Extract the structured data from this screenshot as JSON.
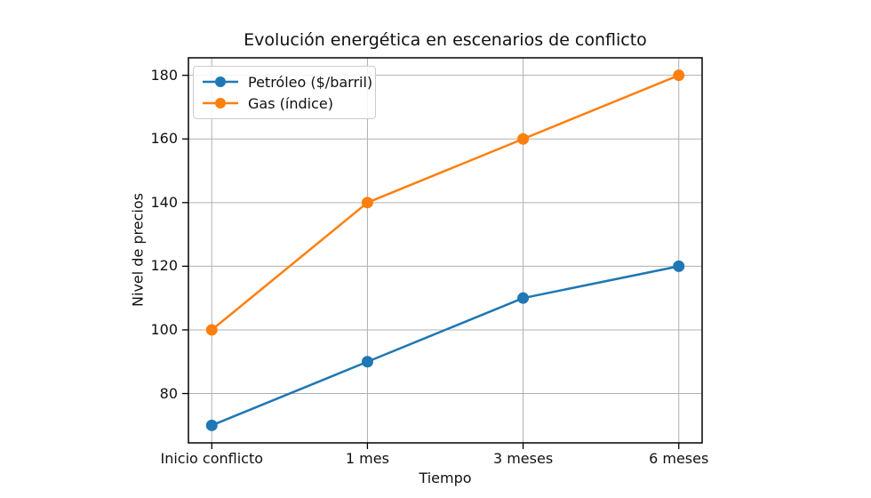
{
  "chart_data": {
    "type": "line",
    "title": "Evolución energética en escenarios de conflicto",
    "xlabel": "Tiempo",
    "ylabel": "Nivel de precios",
    "categories": [
      "Inicio conflicto",
      "1 mes",
      "3 meses",
      "6 meses"
    ],
    "series": [
      {
        "name": "Petróleo ($/barril)",
        "color": "#1f77b4",
        "values": [
          70,
          90,
          110,
          120
        ]
      },
      {
        "name": "Gas (índice)",
        "color": "#ff7f0e",
        "values": [
          100,
          140,
          160,
          180
        ]
      }
    ],
    "yticks": [
      80,
      100,
      120,
      140,
      160,
      180
    ],
    "ylim": [
      64.5,
      185.5
    ],
    "x_margin": 0.15,
    "grid": true,
    "legend_position": "upper left",
    "marker": "o",
    "grid_color": "#b0b0b0",
    "spine_color": "#000000",
    "text_color": "#111111"
  }
}
